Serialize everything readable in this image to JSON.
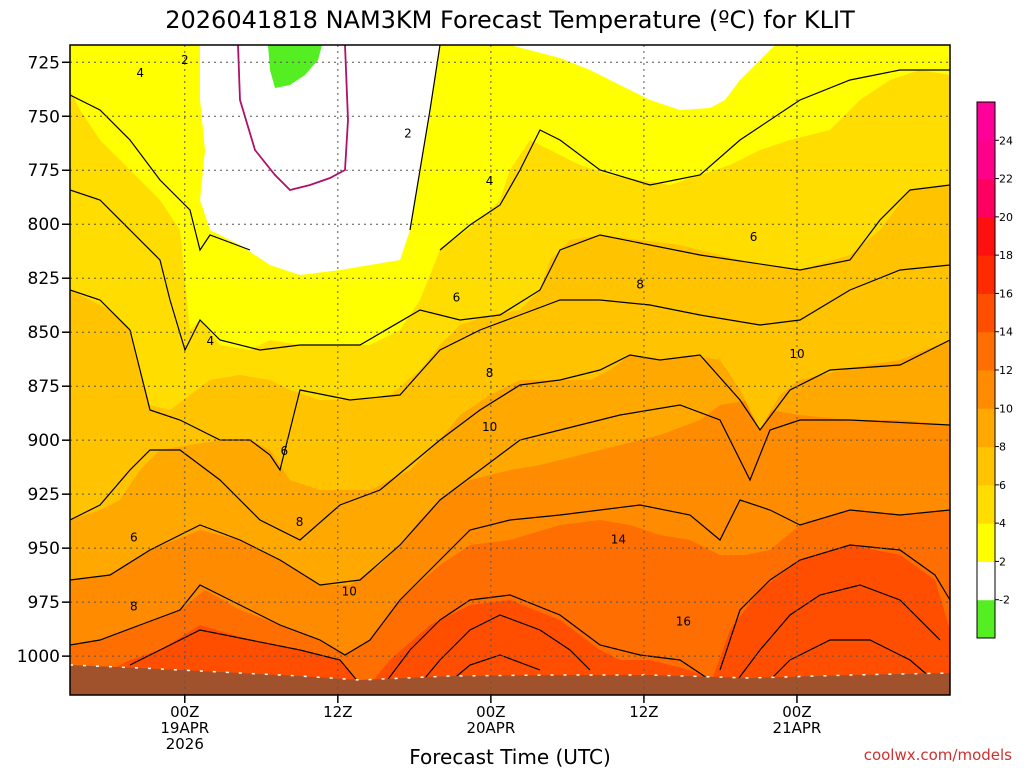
{
  "chart_data": {
    "type": "heatmap",
    "title": "2026041818 NAM3KM Forecast Temperature (ºC) for KLIT",
    "xlabel": "Forecast Time (UTC)",
    "credit": "coolwx.com/models",
    "y_ticks": [
      725,
      750,
      775,
      800,
      825,
      850,
      875,
      900,
      925,
      950,
      975,
      1000
    ],
    "ylim": [
      1018,
      717
    ],
    "x_range_hours": [
      -9,
      60
    ],
    "x_ticks": [
      {
        "hour": 0,
        "lines": [
          "00Z",
          "19APR",
          "2026"
        ]
      },
      {
        "hour": 12,
        "lines": [
          "12Z"
        ]
      },
      {
        "hour": 24,
        "lines": [
          "00Z",
          "20APR"
        ]
      },
      {
        "hour": 36,
        "lines": [
          "12Z"
        ]
      },
      {
        "hour": 48,
        "lines": [
          "00Z",
          "21APR"
        ]
      }
    ],
    "grid": true,
    "colorbar": {
      "levels": [
        -2,
        2,
        4,
        6,
        8,
        10,
        12,
        14,
        16,
        18,
        20,
        22,
        24
      ],
      "colors": [
        "#55ee22",
        "#ffffff",
        "#ffff00",
        "#ffdd00",
        "#ffc300",
        "#ffa800",
        "#ff8c00",
        "#ff6e00",
        "#ff4e00",
        "#ff2a00",
        "#ff1010",
        "#ff0060",
        "#ff0088",
        "#ff0099"
      ]
    },
    "contour_labels": [
      {
        "value": "4",
        "hour": -3.5,
        "p": 730
      },
      {
        "value": "2",
        "hour": 0,
        "p": 724
      },
      {
        "value": "2",
        "hour": 17.5,
        "p": 758
      },
      {
        "value": "4",
        "hour": 23.9,
        "p": 780
      },
      {
        "value": "4",
        "hour": 2,
        "p": 854
      },
      {
        "value": "6",
        "hour": 21.3,
        "p": 834
      },
      {
        "value": "6",
        "hour": 7.8,
        "p": 905
      },
      {
        "value": "6",
        "hour": -4,
        "p": 945
      },
      {
        "value": "8",
        "hour": 23.9,
        "p": 869
      },
      {
        "value": "8",
        "hour": 35.7,
        "p": 828
      },
      {
        "value": "8",
        "hour": -4,
        "p": 977
      },
      {
        "value": "8",
        "hour": 9,
        "p": 938
      },
      {
        "value": "6",
        "hour": 44.6,
        "p": 806
      },
      {
        "value": "10",
        "hour": 23.9,
        "p": 894
      },
      {
        "value": "10",
        "hour": 48,
        "p": 860
      },
      {
        "value": "10",
        "hour": 12.9,
        "p": 970
      },
      {
        "value": "14",
        "hour": 34,
        "p": 946
      },
      {
        "value": "16",
        "hour": 39.1,
        "p": 984
      }
    ]
  }
}
